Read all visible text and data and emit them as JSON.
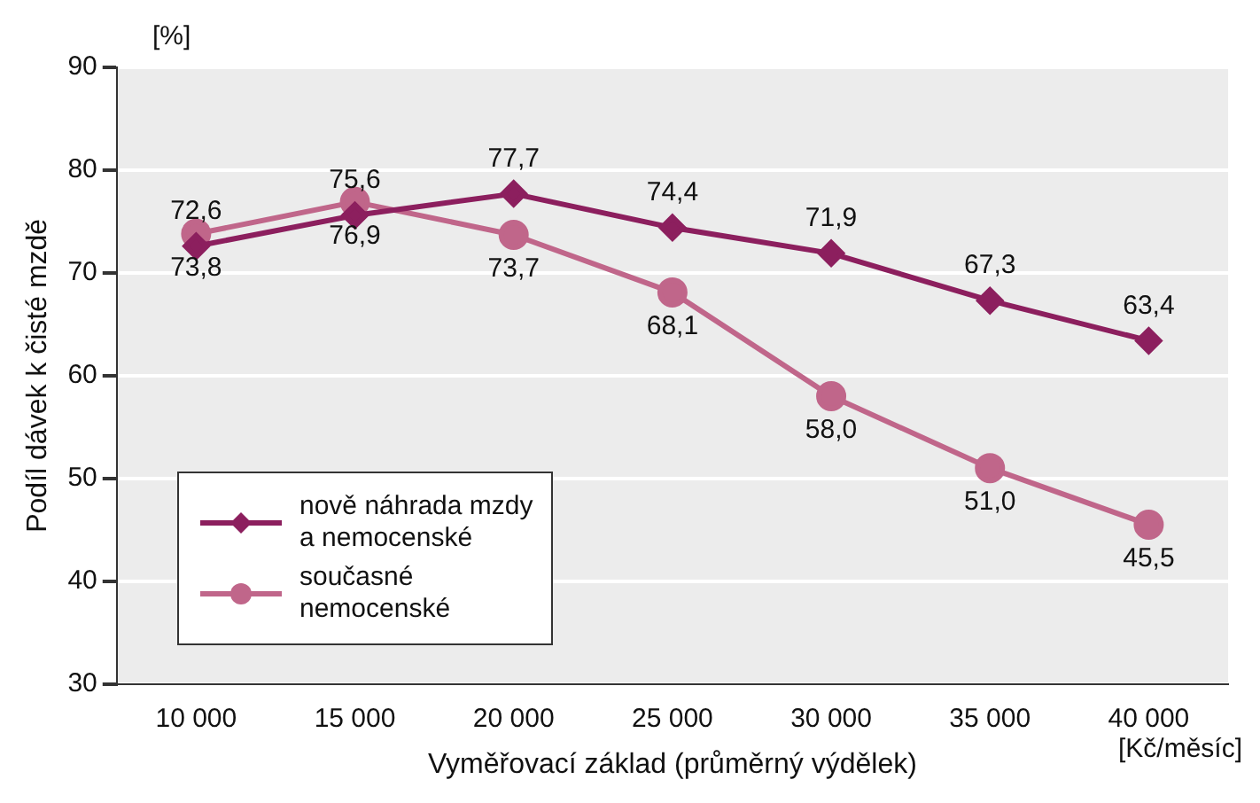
{
  "chart_data": {
    "type": "line",
    "xlabel": "Vyměřovací základ (průměrný výdělek)",
    "ylabel": "Podíl dávek k čisté mzdě",
    "annotations": [
      "[%]",
      "[Kč/měsíc]"
    ],
    "categories": [
      "10 000",
      "15 000",
      "20 000",
      "25 000",
      "30 000",
      "35 000",
      "40 000"
    ],
    "series": [
      {
        "name": "nově náhrada mzdy a nemocenské",
        "color": "#8c1f5e",
        "marker": "diamond",
        "values": [
          72.6,
          75.6,
          77.7,
          74.4,
          71.9,
          67.3,
          63.4
        ],
        "value_labels": [
          "72,6",
          "75,6",
          "77,7",
          "74,4",
          "71,9",
          "67,3",
          "63,4"
        ]
      },
      {
        "name": "současné nemocenské",
        "color": "#c0668a",
        "marker": "circle",
        "values": [
          73.8,
          76.9,
          73.7,
          68.1,
          58.0,
          51.0,
          45.5
        ],
        "value_labels": [
          "73,8",
          "76,9",
          "73,7",
          "68,1",
          "58,0",
          "51,0",
          "45,5"
        ]
      }
    ],
    "ylim": [
      30,
      90
    ],
    "yticks": [
      30,
      40,
      50,
      60,
      70,
      80,
      90
    ],
    "grid": "y",
    "legend": "bottom left",
    "line_style": "solid"
  }
}
